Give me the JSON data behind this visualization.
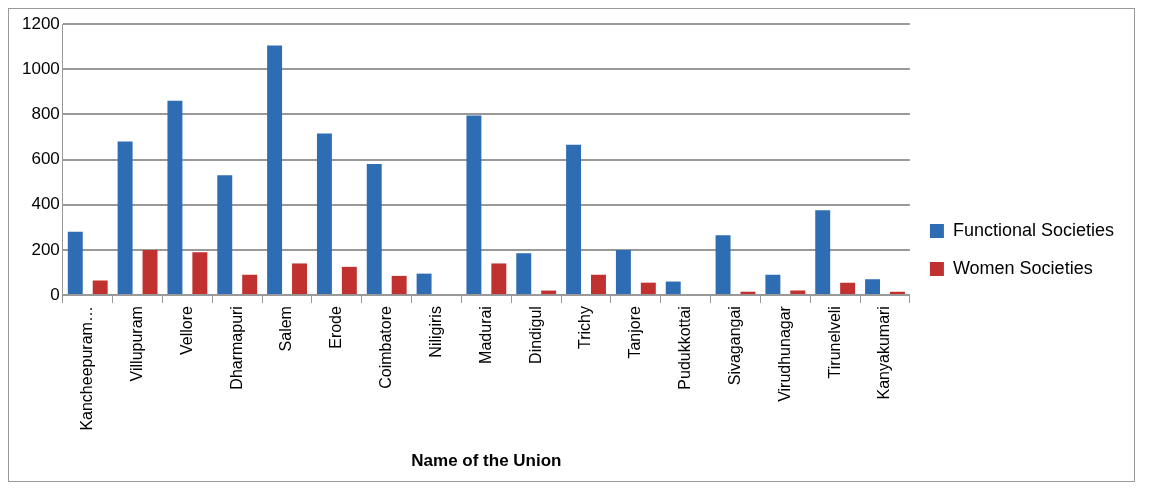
{
  "chart_data": {
    "type": "bar",
    "xlabel": "Name of the Union",
    "categories": [
      "Kancheepuram…",
      "Villupuram",
      "Vellore",
      "Dharmapuri",
      "Salem",
      "Erode",
      "Coimbatore",
      "Niligiris",
      "Madurai",
      "Dindigul",
      "Trichy",
      "Tanjore",
      "Pudukkottai",
      "Sivagangai",
      "Virudhunagar",
      "Tirunelveli",
      "Kanyakumari"
    ],
    "series": [
      {
        "name": "Functional Societies",
        "color": "#2e6db4",
        "values": [
          280,
          680,
          860,
          530,
          1105,
          715,
          580,
          95,
          795,
          185,
          665,
          200,
          60,
          265,
          90,
          375,
          70
        ]
      },
      {
        "name": "Women Societies",
        "color": "#c0312f",
        "values": [
          65,
          200,
          190,
          90,
          140,
          125,
          85,
          0,
          140,
          20,
          90,
          55,
          0,
          15,
          20,
          55,
          15
        ]
      }
    ],
    "ylim": [
      0,
      1200
    ],
    "yticks": [
      0,
      200,
      400,
      600,
      800,
      1000,
      1200
    ],
    "grid": "y",
    "legend": "right"
  }
}
